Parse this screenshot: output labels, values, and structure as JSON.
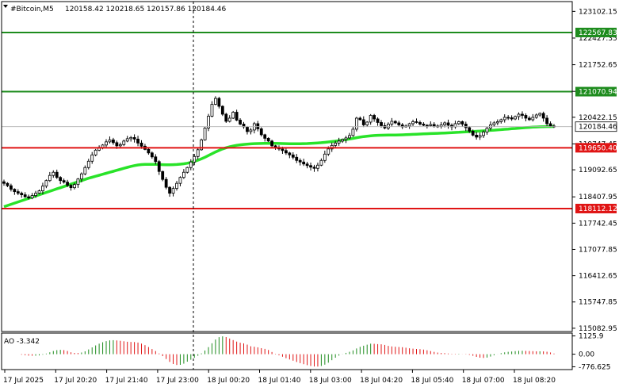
{
  "chart_data": {
    "type": "candlestick",
    "symbol_label": "#Bitcoin,M5",
    "ohlc_label": "120158.42 120218.65 120157.86 120184.46",
    "price_ticks": [
      {
        "value": 123102.15,
        "label": "123102.15"
      },
      {
        "value": 122427.35,
        "label": "122427.35"
      },
      {
        "value": 121752.65,
        "label": "121752.65"
      },
      {
        "value": 121077.85,
        "label": "121077.85"
      },
      {
        "value": 120422.15,
        "label": "120422.15"
      },
      {
        "value": 119747.45,
        "label": "119747.45"
      },
      {
        "value": 119092.65,
        "label": "119092.65"
      },
      {
        "value": 118407.95,
        "label": "118407.95"
      },
      {
        "value": 117742.45,
        "label": "117742.45"
      },
      {
        "value": 117077.85,
        "label": "117077.85"
      },
      {
        "value": 116412.65,
        "label": "116412.65"
      },
      {
        "value": 115747.85,
        "label": "115747.85"
      },
      {
        "value": 115082.95,
        "label": "115082.95"
      }
    ],
    "ylim": [
      115000,
      123350
    ],
    "levels": [
      {
        "value": 122567.83,
        "label": "122567.83",
        "color": "#1e8c1e"
      },
      {
        "value": 121070.94,
        "label": "121070.94",
        "color": "#1e8c1e"
      },
      {
        "value": 119650.4,
        "label": "119650.40",
        "color": "#e01414"
      },
      {
        "value": 118112.12,
        "label": "118112.12",
        "color": "#e01414"
      }
    ],
    "current_price": {
      "value": 120184.46,
      "label": "120184.46"
    },
    "x_labels": [
      "17 Jul 2025",
      "17 Jul 20:20",
      "17 Jul 21:40",
      "17 Jul 23:00",
      "18 Jul 00:20",
      "18 Jul 01:40",
      "18 Jul 03:00",
      "18 Jul 04:20",
      "18 Jul 05:40",
      "18 Jul 07:00",
      "18 Jul 08:20"
    ],
    "close": [
      118750,
      118690,
      118600,
      118540,
      118500,
      118460,
      118410,
      118380,
      118440,
      118500,
      118560,
      118680,
      118820,
      118950,
      119030,
      118900,
      118820,
      118780,
      118700,
      118640,
      118720,
      118860,
      118990,
      119150,
      119310,
      119470,
      119590,
      119660,
      119720,
      119800,
      119850,
      119780,
      119700,
      119730,
      119820,
      119880,
      119910,
      119870,
      119770,
      119690,
      119610,
      119520,
      119420,
      119300,
      119050,
      118850,
      118650,
      118500,
      118620,
      118750,
      118900,
      119030,
      119150,
      119290,
      119430,
      119600,
      119850,
      120150,
      120450,
      120750,
      120900,
      120700,
      120500,
      120320,
      120400,
      120550,
      120350,
      120250,
      120180,
      120060,
      120100,
      120260,
      120130,
      119980,
      119890,
      119820,
      119700,
      119660,
      119620,
      119580,
      119520,
      119470,
      119410,
      119330,
      119290,
      119240,
      119200,
      119160,
      119130,
      119210,
      119330,
      119490,
      119620,
      119710,
      119770,
      119820,
      119860,
      119900,
      119960,
      120120,
      120400,
      120360,
      120230,
      120300,
      120470,
      120380,
      120290,
      120210,
      120150,
      120250,
      120320,
      120280,
      120230,
      120180,
      120200,
      120260,
      120310,
      120290,
      120250,
      120220,
      120210,
      120240,
      120200,
      120190,
      120230,
      120280,
      120220,
      120180,
      120260,
      120310,
      120250,
      120160,
      120070,
      119970,
      119920,
      119960,
      120050,
      120150,
      120230,
      120280,
      120310,
      120360,
      120420,
      120410,
      120380,
      120440,
      120500,
      120470,
      120400,
      120360,
      120420,
      120480,
      120520,
      120400,
      120260,
      120200,
      120184
    ],
    "ma": [
      118160,
      118190,
      118220,
      118250,
      118280,
      118310,
      118340,
      118370,
      118400,
      118430,
      118460,
      118490,
      118520,
      118550,
      118580,
      118610,
      118640,
      118670,
      118700,
      118730,
      118760,
      118790,
      118820,
      118850,
      118880,
      118905,
      118930,
      118955,
      118980,
      119005,
      119030,
      119055,
      119080,
      119105,
      119130,
      119155,
      119180,
      119200,
      119215,
      119225,
      119230,
      119232,
      119232,
      119230,
      119227,
      119224,
      119222,
      119222,
      119224,
      119228,
      119235,
      119245,
      119260,
      119280,
      119305,
      119335,
      119370,
      119410,
      119455,
      119500,
      119545,
      119585,
      119620,
      119650,
      119675,
      119695,
      119712,
      119725,
      119735,
      119743,
      119750,
      119755,
      119758,
      119760,
      119761,
      119762,
      119762,
      119761,
      119759,
      119757,
      119755,
      119753,
      119752,
      119752,
      119753,
      119755,
      119758,
      119762,
      119767,
      119773,
      119780,
      119788,
      119797,
      119807,
      119818,
      119830,
      119843,
      119857,
      119872,
      119888,
      119905,
      119920,
      119933,
      119944,
      119953,
      119960,
      119965,
      119968,
      119970,
      119971,
      119972,
      119973,
      119975,
      119978,
      119981,
      119985,
      119989,
      119993,
      119997,
      120001,
      120005,
      120009,
      120013,
      120017,
      120021,
      120025,
      120029,
      120033,
      120038,
      120043,
      120048,
      120053,
      120058,
      120063,
      120068,
      120073,
      120078,
      120084,
      120090,
      120097,
      120104,
      120111,
      120118,
      120125,
      120132,
      120139,
      120146,
      120153,
      120160,
      120166,
      120172,
      120177,
      120181,
      120184,
      120186,
      120187,
      120188
    ],
    "ao": {
      "label": "AO -3.342",
      "ticks": [
        {
          "value": 1125.9,
          "label": "1125.9"
        },
        {
          "value": 0,
          "label": "0.00"
        },
        {
          "value": -776.63,
          "label": "-776.625"
        }
      ],
      "ylim": [
        -950,
        1300
      ],
      "up_color": "#1e8c1e",
      "down_color": "#e01414"
    },
    "grid": false
  }
}
